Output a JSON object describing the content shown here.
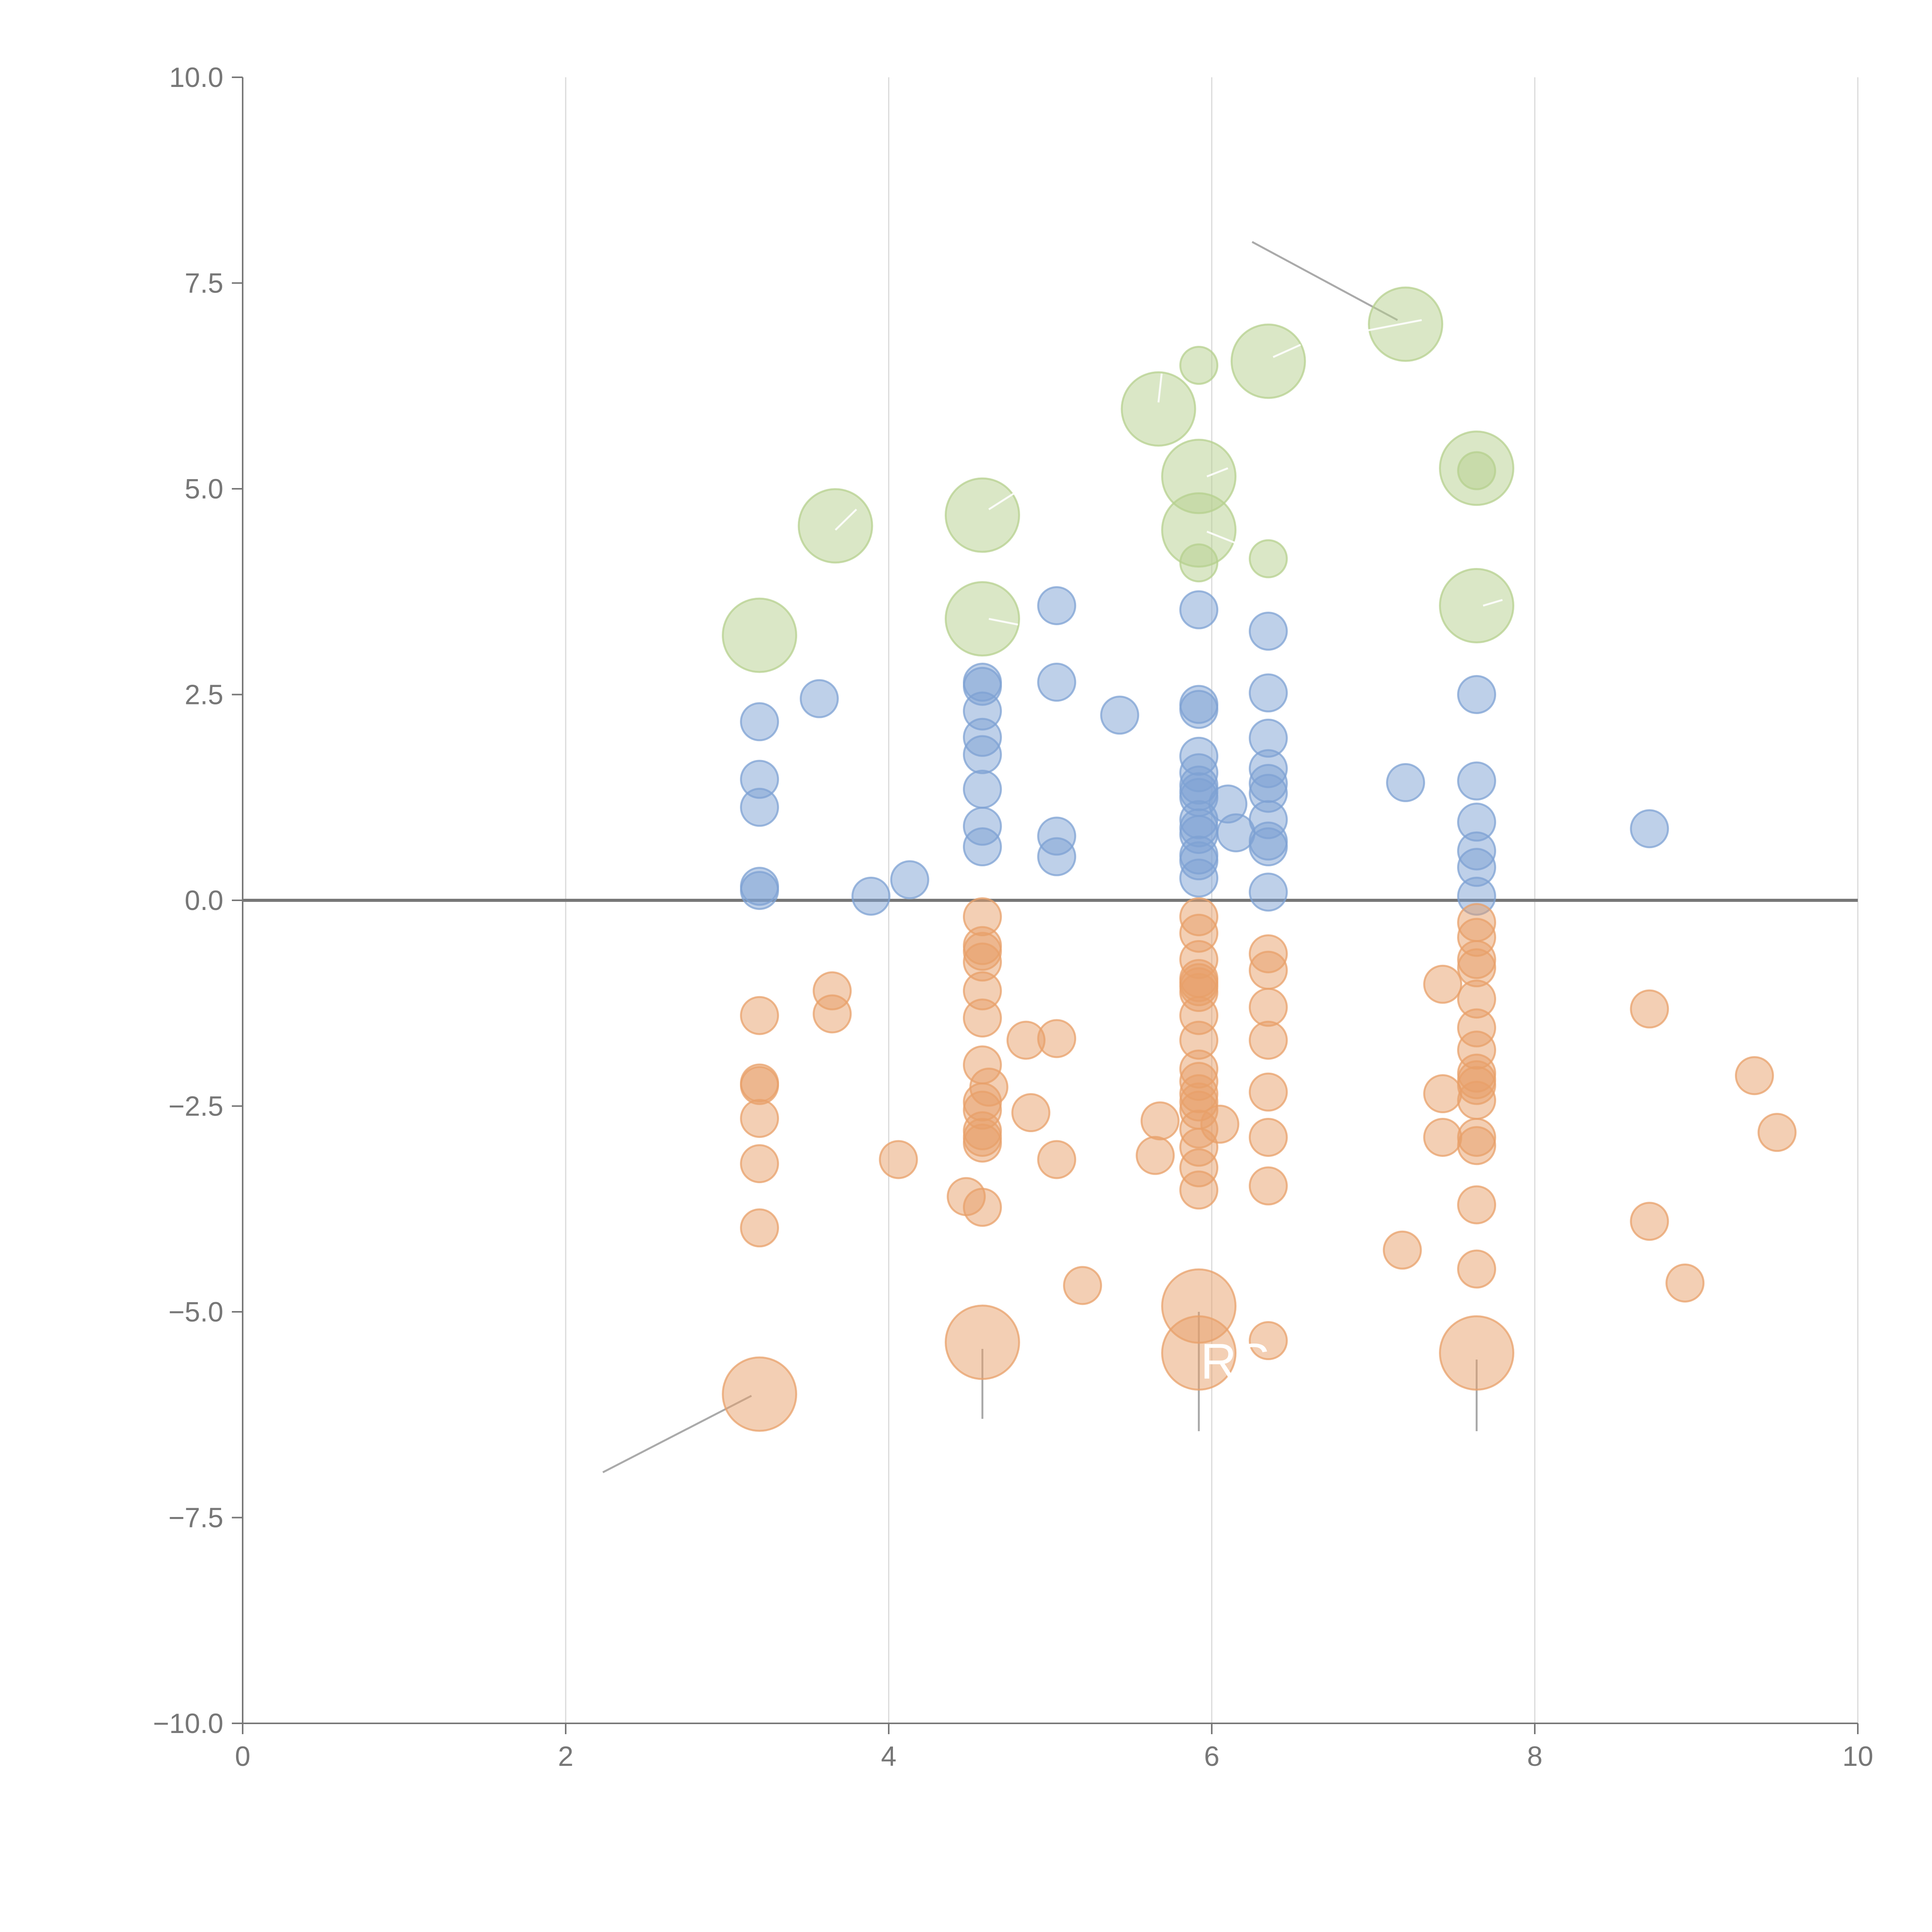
{
  "chart_data": {
    "type": "scatter",
    "title": "",
    "xlabel": "",
    "ylabel": "",
    "xlim": [
      0,
      10
    ],
    "ylim": [
      -10,
      10
    ],
    "x_ticks": [
      "0",
      "2",
      "4",
      "6",
      "8",
      "10"
    ],
    "x_tick_values": [
      0,
      2,
      4,
      6,
      8,
      10
    ],
    "y_ticks": [
      "10.0",
      "7.5",
      "5.0",
      "2.5",
      "0.0",
      "−2.5",
      "−5.0",
      "−7.5",
      "−10.0"
    ],
    "y_tick_values": [
      10,
      7.5,
      5,
      2.5,
      0,
      -2.5,
      -5,
      -7.5,
      -10
    ],
    "grid": "vertical",
    "zero_line": true,
    "annotation_text": "RS",
    "colors": {
      "up": "#7da2d3",
      "down": "#e8a06a",
      "highlight": "#b5d08e"
    },
    "series": [
      {
        "name": "up",
        "color": "#7da2d3",
        "size": "small",
        "points": [
          [
            3.2,
            2.17
          ],
          [
            3.2,
            1.47
          ],
          [
            3.2,
            1.13
          ],
          [
            3.2,
            0.17
          ],
          [
            3.2,
            0.12
          ],
          [
            3.57,
            2.45
          ],
          [
            3.89,
            0.05
          ],
          [
            4.13,
            0.25
          ],
          [
            4.58,
            2.65
          ],
          [
            4.58,
            2.6
          ],
          [
            4.58,
            2.3
          ],
          [
            4.58,
            1.98
          ],
          [
            4.58,
            1.77
          ],
          [
            4.58,
            1.35
          ],
          [
            4.58,
            0.9
          ],
          [
            4.58,
            0.65
          ],
          [
            5.04,
            3.58
          ],
          [
            5.04,
            2.65
          ],
          [
            5.04,
            0.78
          ],
          [
            5.04,
            0.53
          ],
          [
            5.43,
            2.25
          ],
          [
            5.92,
            3.53
          ],
          [
            5.92,
            2.38
          ],
          [
            5.92,
            2.32
          ],
          [
            5.92,
            1.75
          ],
          [
            5.92,
            1.55
          ],
          [
            5.92,
            1.4
          ],
          [
            5.92,
            1.32
          ],
          [
            5.92,
            1.25
          ],
          [
            5.92,
            0.98
          ],
          [
            5.92,
            0.88
          ],
          [
            5.92,
            0.8
          ],
          [
            5.92,
            0.55
          ],
          [
            5.92,
            0.48
          ],
          [
            5.92,
            0.27
          ],
          [
            6.1,
            1.17
          ],
          [
            6.15,
            0.82
          ],
          [
            6.35,
            3.27
          ],
          [
            6.35,
            2.52
          ],
          [
            6.35,
            1.97
          ],
          [
            6.35,
            1.6
          ],
          [
            6.35,
            1.42
          ],
          [
            6.35,
            1.3
          ],
          [
            6.35,
            0.98
          ],
          [
            6.35,
            0.72
          ],
          [
            6.35,
            0.65
          ],
          [
            6.35,
            0.1
          ],
          [
            7.2,
            1.43
          ],
          [
            7.64,
            2.5
          ],
          [
            7.64,
            1.45
          ],
          [
            7.64,
            0.95
          ],
          [
            7.64,
            0.6
          ],
          [
            7.64,
            0.4
          ],
          [
            7.64,
            0.05
          ],
          [
            8.71,
            0.87
          ]
        ]
      },
      {
        "name": "down",
        "color": "#e8a06a",
        "size": "small",
        "points": [
          [
            3.2,
            -1.4
          ],
          [
            3.2,
            -2.22
          ],
          [
            3.2,
            -2.25
          ],
          [
            3.2,
            -2.65
          ],
          [
            3.2,
            -3.2
          ],
          [
            3.2,
            -3.98
          ],
          [
            3.65,
            -1.1
          ],
          [
            3.65,
            -1.38
          ],
          [
            4.06,
            -3.15
          ],
          [
            4.48,
            -3.6
          ],
          [
            4.58,
            -0.2
          ],
          [
            4.58,
            -0.55
          ],
          [
            4.58,
            -0.62
          ],
          [
            4.58,
            -0.75
          ],
          [
            4.58,
            -1.1
          ],
          [
            4.58,
            -1.43
          ],
          [
            4.58,
            -2.0
          ],
          [
            4.58,
            -2.45
          ],
          [
            4.58,
            -2.55
          ],
          [
            4.58,
            -2.8
          ],
          [
            4.58,
            -2.88
          ],
          [
            4.58,
            -2.95
          ],
          [
            4.58,
            -3.73
          ],
          [
            4.62,
            -2.27
          ],
          [
            4.85,
            -1.7
          ],
          [
            4.88,
            -2.58
          ],
          [
            5.04,
            -1.68
          ],
          [
            5.04,
            -3.15
          ],
          [
            5.2,
            -4.68
          ],
          [
            5.65,
            -3.1
          ],
          [
            5.68,
            -2.68
          ],
          [
            5.92,
            -0.2
          ],
          [
            5.92,
            -0.4
          ],
          [
            5.92,
            -0.72
          ],
          [
            5.92,
            -0.95
          ],
          [
            5.92,
            -1.0
          ],
          [
            5.92,
            -1.05
          ],
          [
            5.92,
            -1.12
          ],
          [
            5.92,
            -1.4
          ],
          [
            5.92,
            -1.7
          ],
          [
            5.92,
            -2.05
          ],
          [
            5.92,
            -2.2
          ],
          [
            5.92,
            -2.35
          ],
          [
            5.92,
            -2.45
          ],
          [
            5.92,
            -2.55
          ],
          [
            5.92,
            -2.78
          ],
          [
            5.92,
            -3.0
          ],
          [
            5.92,
            -3.25
          ],
          [
            5.92,
            -3.52
          ],
          [
            6.05,
            -2.72
          ],
          [
            6.35,
            -0.65
          ],
          [
            6.35,
            -0.85
          ],
          [
            6.35,
            -1.3
          ],
          [
            6.35,
            -1.7
          ],
          [
            6.35,
            -2.33
          ],
          [
            6.35,
            -2.88
          ],
          [
            6.35,
            -3.47
          ],
          [
            6.35,
            -5.35
          ],
          [
            7.18,
            -4.25
          ],
          [
            7.43,
            -1.02
          ],
          [
            7.43,
            -2.35
          ],
          [
            7.43,
            -2.88
          ],
          [
            7.64,
            -0.27
          ],
          [
            7.64,
            -0.45
          ],
          [
            7.64,
            -0.72
          ],
          [
            7.64,
            -0.82
          ],
          [
            7.64,
            -1.2
          ],
          [
            7.64,
            -1.55
          ],
          [
            7.64,
            -1.82
          ],
          [
            7.64,
            -2.1
          ],
          [
            7.64,
            -2.18
          ],
          [
            7.64,
            -2.25
          ],
          [
            7.64,
            -2.43
          ],
          [
            7.64,
            -2.88
          ],
          [
            7.64,
            -2.98
          ],
          [
            7.64,
            -3.7
          ],
          [
            7.64,
            -4.48
          ],
          [
            8.71,
            -1.32
          ],
          [
            8.71,
            -3.9
          ],
          [
            8.93,
            -4.65
          ],
          [
            9.36,
            -2.13
          ],
          [
            9.5,
            -2.82
          ]
        ]
      },
      {
        "name": "highlight-up",
        "color": "#b5d08e",
        "size": "large",
        "points": [
          [
            3.2,
            3.22
          ],
          [
            3.67,
            4.55
          ],
          [
            4.58,
            4.68
          ],
          [
            4.58,
            3.42
          ],
          [
            5.67,
            5.97
          ],
          [
            5.92,
            5.15
          ],
          [
            5.92,
            4.5
          ],
          [
            6.35,
            6.55
          ],
          [
            7.2,
            7.0
          ],
          [
            7.64,
            5.25
          ],
          [
            7.64,
            3.58
          ]
        ]
      },
      {
        "name": "highlight-up-small",
        "color": "#b5d08e",
        "size": "small",
        "points": [
          [
            5.92,
            6.5
          ],
          [
            5.92,
            4.1
          ],
          [
            6.35,
            4.15
          ],
          [
            7.64,
            5.22
          ]
        ]
      },
      {
        "name": "highlight-down",
        "color": "#e8a06a",
        "size": "large",
        "points": [
          [
            3.2,
            -6.0
          ],
          [
            4.58,
            -5.37
          ],
          [
            5.92,
            -4.93
          ],
          [
            5.92,
            -5.5
          ],
          [
            7.64,
            -5.5
          ]
        ]
      }
    ],
    "leaders": [
      {
        "from": [
          6.25,
          8.0
        ],
        "to": [
          7.15,
          7.05
        ],
        "style": "gray"
      },
      {
        "from": [
          2.23,
          -6.95
        ],
        "to": [
          3.15,
          -6.02
        ],
        "style": "gray"
      },
      {
        "from": [
          4.58,
          -5.45
        ],
        "to": [
          4.58,
          -6.3
        ],
        "style": "gray"
      },
      {
        "from": [
          5.92,
          -5.0
        ],
        "to": [
          5.92,
          -6.45
        ],
        "style": "gray"
      },
      {
        "from": [
          7.64,
          -5.58
        ],
        "to": [
          7.64,
          -6.45
        ],
        "style": "gray"
      },
      {
        "from": [
          3.67,
          4.5
        ],
        "to": [
          3.8,
          4.75
        ],
        "style": "white"
      },
      {
        "from": [
          4.62,
          4.75
        ],
        "to": [
          4.78,
          4.95
        ],
        "style": "white"
      },
      {
        "from": [
          4.62,
          3.42
        ],
        "to": [
          4.8,
          3.35
        ],
        "style": "white"
      },
      {
        "from": [
          5.67,
          6.05
        ],
        "to": [
          5.69,
          6.4
        ],
        "style": "white"
      },
      {
        "from": [
          5.97,
          5.15
        ],
        "to": [
          6.1,
          5.25
        ],
        "style": "white"
      },
      {
        "from": [
          5.97,
          4.48
        ],
        "to": [
          6.2,
          4.3
        ],
        "style": "white"
      },
      {
        "from": [
          6.38,
          6.6
        ],
        "to": [
          6.55,
          6.75
        ],
        "style": "white"
      },
      {
        "from": [
          6.9,
          6.9
        ],
        "to": [
          7.3,
          7.05
        ],
        "style": "white"
      },
      {
        "from": [
          7.68,
          3.58
        ],
        "to": [
          7.8,
          3.65
        ],
        "style": "white"
      }
    ],
    "annotation_anchor": [
      5.93,
      -5.6
    ]
  }
}
